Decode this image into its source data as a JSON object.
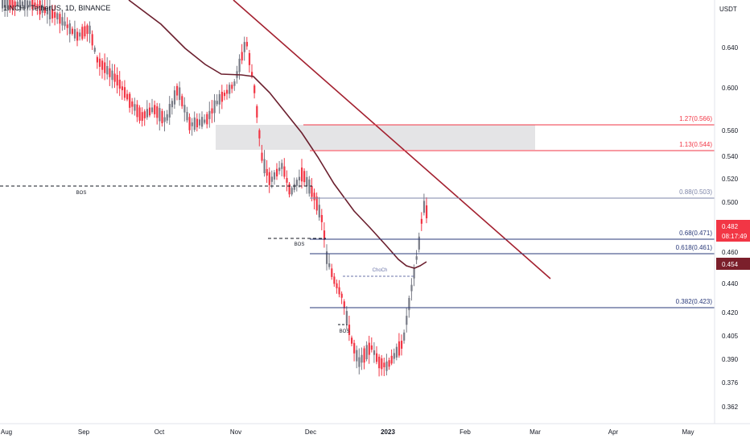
{
  "header": {
    "symbol_title": "1INCH / TetherUS, 1D, BINANCE"
  },
  "chart_data": {
    "type": "candlestick",
    "currency_label": "USDT",
    "y_ticks": [
      "0.640",
      "0.600",
      "0.560",
      "0.540",
      "0.520",
      "0.500",
      "0.460",
      "0.440",
      "0.420",
      "0.405",
      "0.390",
      "0.376",
      "0.362"
    ],
    "y_tick_values": [
      0.64,
      0.6,
      0.56,
      0.54,
      0.52,
      0.5,
      0.46,
      0.44,
      0.42,
      0.405,
      0.39,
      0.376,
      0.362
    ],
    "x_ticks": [
      "Aug",
      "Sep",
      "Oct",
      "Nov",
      "Dec",
      "2023",
      "Feb",
      "Mar",
      "Apr",
      "May"
    ],
    "price_badges": [
      {
        "label": "0.482",
        "sub": "08:17:49",
        "color": "#f23645"
      },
      {
        "label": "0.454",
        "color": "#7b1f2b"
      }
    ],
    "fib_levels": [
      {
        "label": "1.27(0.566)",
        "color": "#f23645"
      },
      {
        "label": "1.13(0.544)",
        "color": "#f23645"
      },
      {
        "label": "0.88(0.503)",
        "color": "#7e86a8"
      },
      {
        "label": "0.68(0.471)",
        "color": "#2a3a7a"
      },
      {
        "label": "0.618(0.461)",
        "color": "#2a3a7a"
      },
      {
        "label": "0.382(0.423)",
        "color": "#2a3a7a"
      }
    ],
    "annotations": [
      "BOS",
      "BOS",
      "BOS",
      "ChoCh"
    ],
    "colors": {
      "up": "#787b86",
      "down": "#f23645",
      "ma": "#6b1f2e",
      "trendline": "#a3202f",
      "zone": "#e4e4e6"
    },
    "grid": false
  }
}
